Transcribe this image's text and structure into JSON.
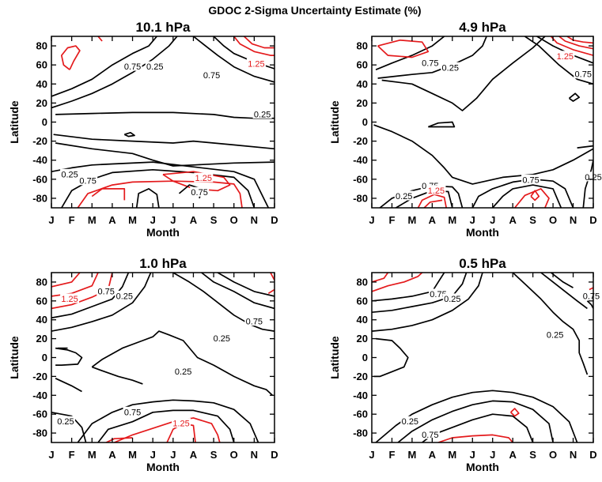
{
  "figure": {
    "title": "GDOC 2-Sigma Uncertainty Estimate (%)"
  },
  "colors": {
    "low_contours": "#000000",
    "high_contours": "#e41a1c"
  },
  "chart_data": [
    {
      "type": "contour",
      "title": "10.1 hPa",
      "xlabel": "Month",
      "ylabel": "Latitude",
      "x_ticks": [
        "J",
        "F",
        "M",
        "A",
        "M",
        "J",
        "J",
        "A",
        "S",
        "O",
        "N",
        "D"
      ],
      "y_ticks": [
        80,
        60,
        40,
        20,
        0,
        -20,
        -40,
        -60,
        -80
      ],
      "ylim": [
        -90,
        90
      ],
      "xlim": [
        1,
        12
      ],
      "contour_levels": [
        0.25,
        0.75,
        1.25
      ],
      "contour_labels": [
        {
          "text": "0.75",
          "month": 5.0,
          "lat": 58,
          "color": "black"
        },
        {
          "text": "0.25",
          "month": 6.1,
          "lat": 58,
          "color": "black"
        },
        {
          "text": "0.75",
          "month": 8.9,
          "lat": 49,
          "color": "black"
        },
        {
          "text": "1.25",
          "month": 11.1,
          "lat": 61,
          "color": "red"
        },
        {
          "text": "0.25",
          "month": 11.4,
          "lat": 8,
          "color": "black"
        },
        {
          "text": "0.25",
          "month": 1.9,
          "lat": -55,
          "color": "black"
        },
        {
          "text": "0.75",
          "month": 2.8,
          "lat": -62,
          "color": "black"
        },
        {
          "text": "1.25",
          "month": 8.5,
          "lat": -59,
          "color": "red"
        },
        {
          "text": "0.75",
          "month": 8.3,
          "lat": -74,
          "color": "black"
        }
      ]
    },
    {
      "type": "contour",
      "title": "4.9 hPa",
      "xlabel": "Month",
      "ylabel": "Latitude",
      "x_ticks": [
        "J",
        "F",
        "M",
        "A",
        "M",
        "J",
        "J",
        "A",
        "S",
        "O",
        "N",
        "D"
      ],
      "y_ticks": [
        80,
        60,
        40,
        20,
        0,
        -20,
        -40,
        -60,
        -80
      ],
      "ylim": [
        -90,
        90
      ],
      "xlim": [
        1,
        12
      ],
      "contour_levels": [
        0.25,
        0.75,
        1.25
      ],
      "contour_labels": [
        {
          "text": "0.75",
          "month": 3.9,
          "lat": 62,
          "color": "black"
        },
        {
          "text": "0.25",
          "month": 4.9,
          "lat": 57,
          "color": "black"
        },
        {
          "text": "1.25",
          "month": 10.6,
          "lat": 69,
          "color": "red"
        },
        {
          "text": "0.75",
          "month": 11.5,
          "lat": 50,
          "color": "black"
        },
        {
          "text": "0.25",
          "month": 2.6,
          "lat": -78,
          "color": "black"
        },
        {
          "text": "0.75",
          "month": 3.9,
          "lat": -67,
          "color": "black"
        },
        {
          "text": "1.25",
          "month": 4.2,
          "lat": -72,
          "color": "red"
        },
        {
          "text": "0.75",
          "month": 8.9,
          "lat": -61,
          "color": "black"
        },
        {
          "text": "0.25",
          "month": 12.0,
          "lat": -58,
          "color": "black"
        }
      ]
    },
    {
      "type": "contour",
      "title": "1.0 hPa",
      "xlabel": "Month",
      "ylabel": "Latitude",
      "x_ticks": [
        "J",
        "F",
        "M",
        "A",
        "M",
        "J",
        "J",
        "A",
        "S",
        "O",
        "N",
        "D"
      ],
      "y_ticks": [
        80,
        60,
        40,
        20,
        0,
        -20,
        -40,
        -60,
        -80
      ],
      "ylim": [
        -90,
        90
      ],
      "xlim": [
        1,
        12
      ],
      "contour_levels": [
        0.25,
        0.75,
        1.25
      ],
      "contour_labels": [
        {
          "text": "1.25",
          "month": 1.9,
          "lat": 62,
          "color": "red"
        },
        {
          "text": "0.75",
          "month": 3.7,
          "lat": 70,
          "color": "black"
        },
        {
          "text": "0.25",
          "month": 4.6,
          "lat": 65,
          "color": "black"
        },
        {
          "text": "0.25",
          "month": 9.4,
          "lat": 20,
          "color": "black"
        },
        {
          "text": "0.75",
          "month": 11.0,
          "lat": 38,
          "color": "black"
        },
        {
          "text": "0.25",
          "month": 7.5,
          "lat": -15,
          "color": "black"
        },
        {
          "text": "0.25",
          "month": 1.7,
          "lat": -68,
          "color": "black"
        },
        {
          "text": "0.75",
          "month": 5.0,
          "lat": -58,
          "color": "black"
        },
        {
          "text": "1.25",
          "month": 7.4,
          "lat": -70,
          "color": "red"
        }
      ]
    },
    {
      "type": "contour",
      "title": "0.5 hPa",
      "xlabel": "Month",
      "ylabel": "Latitude",
      "x_ticks": [
        "J",
        "F",
        "M",
        "A",
        "M",
        "J",
        "J",
        "A",
        "S",
        "O",
        "N",
        "D"
      ],
      "y_ticks": [
        80,
        60,
        40,
        20,
        0,
        -20,
        -40,
        -60,
        -80
      ],
      "ylim": [
        -90,
        90
      ],
      "xlim": [
        1,
        12
      ],
      "contour_levels": [
        0.25,
        0.75,
        1.25
      ],
      "contour_labels": [
        {
          "text": "0.75",
          "month": 4.3,
          "lat": 67,
          "color": "black"
        },
        {
          "text": "0.25",
          "month": 5.0,
          "lat": 62,
          "color": "black"
        },
        {
          "text": "0.75",
          "month": 11.9,
          "lat": 65,
          "color": "black"
        },
        {
          "text": "0.25",
          "month": 10.1,
          "lat": 24,
          "color": "black"
        },
        {
          "text": "0.25",
          "month": 2.9,
          "lat": -68,
          "color": "black"
        },
        {
          "text": "0.75",
          "month": 3.9,
          "lat": -82,
          "color": "black"
        }
      ]
    }
  ]
}
